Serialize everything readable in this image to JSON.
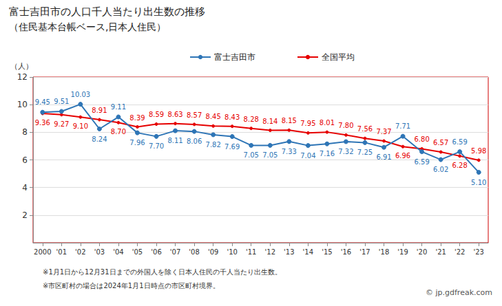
{
  "chart_data": {
    "type": "line",
    "title": "富士吉田市の人口千人当たり出生数の推移",
    "subtitle": "（住民基本台帳ベース,日本人住民）",
    "y_label": "（人）",
    "categories": [
      "2000",
      "'01",
      "'02",
      "'03",
      "'04",
      "'05",
      "'06",
      "'07",
      "'08",
      "'09",
      "'10",
      "'11",
      "'12",
      "'13",
      "'14",
      "'15",
      "'16",
      "'17",
      "'18",
      "'19",
      "'20",
      "'21",
      "'22",
      "'23"
    ],
    "series": [
      {
        "name": "富士吉田市",
        "color": "#2e75b6",
        "marker": "circle",
        "values": [
          9.45,
          9.51,
          10.03,
          8.24,
          9.11,
          7.96,
          7.7,
          8.11,
          8.06,
          7.82,
          7.69,
          7.05,
          7.05,
          7.33,
          7.04,
          7.16,
          7.32,
          7.25,
          6.91,
          7.71,
          6.59,
          6.02,
          6.59,
          5.1
        ],
        "value_labels": [
          "9.45",
          "9.51",
          "10.03",
          "8.24",
          "9.11",
          "7.96",
          "7.70",
          "8.11",
          "8.06",
          "7.82",
          "7.69",
          "7.05",
          "7.05",
          "7.33",
          "7.04",
          "7.16",
          "7.32",
          "7.25",
          "6.91",
          "7.71",
          "6.59",
          "6.02",
          "6.59",
          "5.10"
        ]
      },
      {
        "name": "全国平均",
        "color": "#e60000",
        "marker": "circle",
        "values": [
          9.36,
          9.27,
          9.1,
          8.91,
          8.7,
          8.39,
          8.59,
          8.63,
          8.57,
          8.45,
          8.43,
          8.28,
          8.14,
          8.15,
          7.95,
          8.01,
          7.8,
          7.56,
          7.37,
          6.96,
          6.8,
          6.57,
          6.28,
          5.98
        ],
        "value_labels": [
          "9.36",
          "9.27",
          "9.10",
          "8.91",
          "8.70",
          "8.39",
          "8.59",
          "8.63",
          "8.57",
          "8.45",
          "8.43",
          "8.28",
          "8.14",
          "8.15",
          "7.95",
          "8.01",
          "7.80",
          "7.56",
          "7.37",
          "6.96",
          "6.80",
          "6.57",
          "6.28",
          "5.98"
        ]
      }
    ],
    "ylim": [
      0,
      12
    ],
    "yticks": [
      2,
      4,
      6,
      8,
      10,
      12
    ],
    "grid": true,
    "legend": "top",
    "data_labels": true,
    "annotations": [
      "※1月1日から12月31日までの外国人を除く日本人住民の千人当たり出生数。",
      "※市区町村の場合は2024年1月1日時点の市区町村境界。",
      "© jp.gdfreak.com"
    ]
  }
}
